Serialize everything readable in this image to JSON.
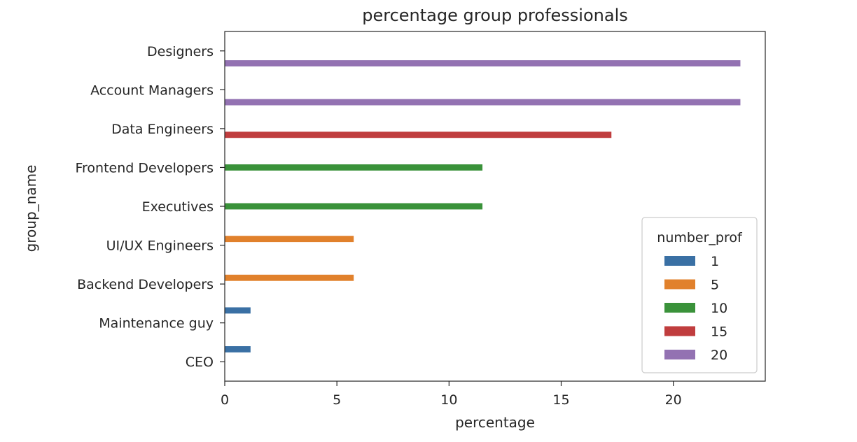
{
  "chart_data": {
    "type": "bar",
    "orientation": "horizontal",
    "title": "percentage group professionals",
    "xlabel": "percentage",
    "ylabel": "group_name",
    "xlim": [
      0,
      24.1
    ],
    "xticks": [
      0,
      5,
      10,
      15,
      20
    ],
    "grid": false,
    "categories": [
      "Designers",
      "Account Managers",
      "Data Engineers",
      "Frontend Developers",
      "Executives",
      "UI/UX Engineers",
      "Backend Developers",
      "Maintenance guy",
      "CEO"
    ],
    "legend": {
      "title": "number_prof",
      "placement": "lower right",
      "entries": [
        "1",
        "5",
        "10",
        "15",
        "20"
      ]
    },
    "series": [
      {
        "name": "1",
        "color": "#3a70a4",
        "values": [
          null,
          null,
          null,
          null,
          null,
          null,
          null,
          1.15,
          1.15
        ]
      },
      {
        "name": "5",
        "color": "#e1812c",
        "values": [
          null,
          null,
          null,
          null,
          null,
          5.75,
          5.75,
          null,
          null
        ]
      },
      {
        "name": "10",
        "color": "#3a923a",
        "values": [
          null,
          null,
          null,
          11.49,
          11.49,
          null,
          null,
          null,
          null
        ]
      },
      {
        "name": "15",
        "color": "#c03d3e",
        "values": [
          null,
          null,
          17.24,
          null,
          null,
          null,
          null,
          null,
          null
        ]
      },
      {
        "name": "20",
        "color": "#9372b2",
        "values": [
          22.99,
          22.99,
          null,
          null,
          null,
          null,
          null,
          null,
          null
        ]
      }
    ]
  }
}
